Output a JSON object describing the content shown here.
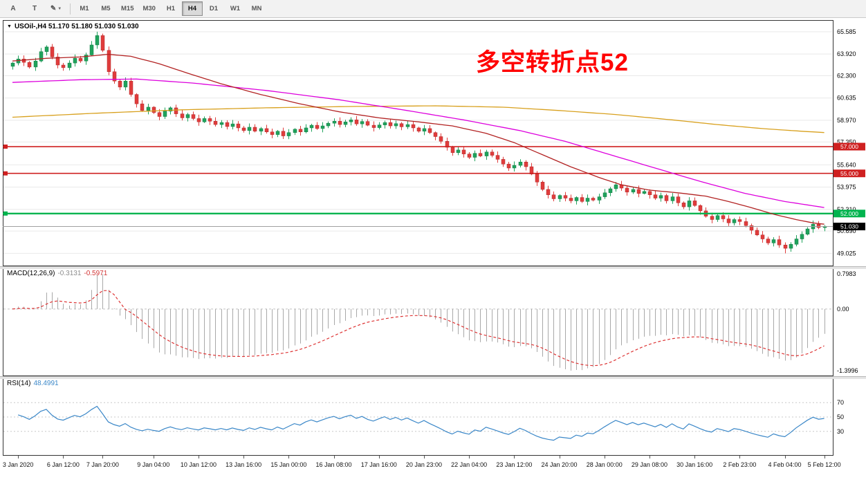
{
  "toolbar": {
    "tool_buttons": [
      {
        "name": "annotate",
        "label": "A",
        "has_dropdown": false
      },
      {
        "name": "text",
        "label": "T",
        "has_dropdown": false
      },
      {
        "name": "draw",
        "label": "✎",
        "has_dropdown": true
      }
    ],
    "timeframes": [
      "M1",
      "M5",
      "M15",
      "M30",
      "H1",
      "H4",
      "D1",
      "W1",
      "MN"
    ],
    "active_timeframe": "H4"
  },
  "chart": {
    "header": {
      "collapse_icon": "▼",
      "symbol_line": "USOil-,H4 51.170 51.180 51.030 51.030"
    },
    "annotation": {
      "text": "多空转折点52",
      "color": "#ff0000"
    },
    "price_axis_labels": [
      65.585,
      63.92,
      62.3,
      60.635,
      58.97,
      57.35,
      55.64,
      53.975,
      52.31,
      50.69,
      49.025
    ],
    "hlines": [
      {
        "price": 57.0,
        "label": "57.000",
        "color": "#cf2020",
        "width": 1.6
      },
      {
        "price": 55.0,
        "label": "55.000",
        "color": "#cf2020",
        "width": 1.6
      },
      {
        "price": 52.0,
        "label": "52.000",
        "color": "#00b44e",
        "width": 2.4
      }
    ],
    "current_price": {
      "value": 51.03,
      "label": "51.030"
    }
  },
  "macd": {
    "label": "MACD(12,26,9)",
    "value_main": "-0.3131",
    "value_signal": "-0.5971",
    "axis_labels": [
      "0.7983",
      "0.00",
      "-1.3996"
    ]
  },
  "rsi": {
    "label": "RSI(14)",
    "value": "48.4991",
    "levels": [
      70,
      50,
      30
    ]
  },
  "time_axis": {
    "labels": [
      {
        "text": "3 Jan 2020",
        "i": 1
      },
      {
        "text": "6 Jan 12:00",
        "i": 9
      },
      {
        "text": "7 Jan 20:00",
        "i": 16
      },
      {
        "text": "9 Jan 04:00",
        "i": 25
      },
      {
        "text": "10 Jan 12:00",
        "i": 33
      },
      {
        "text": "13 Jan 16:00",
        "i": 41
      },
      {
        "text": "15 Jan 00:00",
        "i": 49
      },
      {
        "text": "16 Jan 08:00",
        "i": 57
      },
      {
        "text": "17 Jan 16:00",
        "i": 65
      },
      {
        "text": "20 Jan 23:00",
        "i": 73
      },
      {
        "text": "22 Jan 04:00",
        "i": 81
      },
      {
        "text": "23 Jan 12:00",
        "i": 89
      },
      {
        "text": "24 Jan 20:00",
        "i": 97
      },
      {
        "text": "28 Jan 00:00",
        "i": 105
      },
      {
        "text": "29 Jan 08:00",
        "i": 113
      },
      {
        "text": "30 Jan 16:00",
        "i": 121
      },
      {
        "text": "2 Feb 23:00",
        "i": 129
      },
      {
        "text": "4 Feb 04:00",
        "i": 137
      },
      {
        "text": "5 Feb 12:00",
        "i": 144
      }
    ]
  },
  "chart_data": {
    "type": "candlestick",
    "symbol": "USOil-",
    "timeframe": "H4",
    "title": "USOil-,H4 51.170 51.180 51.030 51.030",
    "y_axis": {
      "min": 48.06,
      "max": 66.46,
      "ticks": [
        65.585,
        63.92,
        62.3,
        60.635,
        58.97,
        57.35,
        55.64,
        53.975,
        52.31,
        50.69,
        49.025
      ]
    },
    "open_first": 63.0,
    "closes": [
      63.25,
      63.55,
      63.3,
      62.95,
      63.4,
      64.1,
      64.45,
      63.7,
      63.1,
      62.9,
      63.25,
      63.6,
      63.4,
      63.85,
      64.6,
      65.3,
      64.2,
      62.6,
      61.9,
      61.45,
      61.9,
      60.9,
      60.2,
      59.7,
      59.95,
      59.55,
      59.25,
      59.65,
      59.9,
      59.45,
      59.15,
      59.4,
      59.1,
      58.85,
      59.1,
      58.9,
      58.65,
      58.8,
      58.5,
      58.7,
      58.4,
      58.2,
      58.45,
      58.15,
      58.35,
      58.1,
      57.9,
      58.15,
      57.8,
      58.05,
      58.3,
      58.1,
      58.4,
      58.6,
      58.35,
      58.55,
      58.75,
      58.9,
      58.65,
      58.85,
      59.0,
      58.7,
      58.88,
      58.6,
      58.42,
      58.62,
      58.8,
      58.55,
      58.72,
      58.48,
      58.65,
      58.4,
      58.15,
      58.35,
      58.05,
      57.75,
      57.4,
      56.95,
      56.55,
      56.75,
      56.45,
      56.2,
      56.5,
      56.3,
      56.6,
      56.35,
      56.05,
      55.7,
      55.4,
      55.6,
      55.85,
      55.5,
      54.95,
      54.35,
      53.8,
      53.4,
      53.1,
      53.35,
      53.15,
      52.95,
      53.2,
      52.9,
      53.15,
      53.0,
      53.25,
      53.55,
      53.85,
      54.15,
      53.9,
      53.6,
      53.8,
      53.5,
      53.65,
      53.4,
      53.15,
      53.35,
      52.95,
      53.25,
      52.8,
      52.5,
      52.95,
      52.6,
      52.2,
      51.8,
      51.55,
      51.85,
      51.6,
      51.3,
      51.55,
      51.4,
      51.1,
      50.75,
      50.4,
      50.1,
      49.8,
      50.05,
      49.65,
      49.4,
      49.7,
      50.1,
      50.45,
      50.85,
      51.2,
      50.95,
      51.03
    ],
    "extremes": {
      "high_index": 15,
      "high": 65.585,
      "low_index": 137,
      "low": 49.025
    },
    "moving_averages": [
      {
        "name": "ma-slow-orange",
        "color": "#d8a01d",
        "anchors": [
          [
            0,
            59.2
          ],
          [
            15,
            59.5
          ],
          [
            30,
            59.75
          ],
          [
            45,
            59.9
          ],
          [
            60,
            60.0
          ],
          [
            75,
            60.05
          ],
          [
            87,
            59.95
          ],
          [
            97,
            59.7
          ],
          [
            107,
            59.4
          ],
          [
            117,
            59.0
          ],
          [
            125,
            58.65
          ],
          [
            133,
            58.35
          ],
          [
            140,
            58.15
          ],
          [
            144,
            58.05
          ]
        ]
      },
      {
        "name": "ma-mid-magenta",
        "color": "#dd00dd",
        "anchors": [
          [
            0,
            61.8
          ],
          [
            12,
            62.0
          ],
          [
            22,
            62.05
          ],
          [
            32,
            61.75
          ],
          [
            45,
            61.2
          ],
          [
            58,
            60.5
          ],
          [
            70,
            59.7
          ],
          [
            80,
            59.0
          ],
          [
            90,
            58.2
          ],
          [
            98,
            57.4
          ],
          [
            106,
            56.4
          ],
          [
            114,
            55.4
          ],
          [
            122,
            54.4
          ],
          [
            130,
            53.5
          ],
          [
            137,
            52.9
          ],
          [
            144,
            52.45
          ]
        ]
      },
      {
        "name": "ma-fast-red",
        "color": "#b22222",
        "anchors": [
          [
            0,
            63.4
          ],
          [
            6,
            63.6
          ],
          [
            12,
            63.7
          ],
          [
            17,
            63.9
          ],
          [
            21,
            63.75
          ],
          [
            26,
            63.2
          ],
          [
            31,
            62.5
          ],
          [
            37,
            61.7
          ],
          [
            44,
            60.9
          ],
          [
            51,
            60.2
          ],
          [
            58,
            59.6
          ],
          [
            65,
            59.15
          ],
          [
            72,
            58.85
          ],
          [
            78,
            58.55
          ],
          [
            84,
            58.0
          ],
          [
            89,
            57.3
          ],
          [
            94,
            56.4
          ],
          [
            99,
            55.5
          ],
          [
            104,
            54.7
          ],
          [
            108,
            54.15
          ],
          [
            113,
            53.75
          ],
          [
            118,
            53.55
          ],
          [
            123,
            53.3
          ],
          [
            127,
            52.9
          ],
          [
            131,
            52.45
          ],
          [
            135,
            51.95
          ],
          [
            139,
            51.55
          ],
          [
            142,
            51.3
          ],
          [
            144,
            51.2
          ]
        ]
      }
    ],
    "indicators": {
      "macd": {
        "fast": 12,
        "slow": 26,
        "signal": 9,
        "shown_main": -0.3131,
        "shown_signal": -0.5971,
        "scale": [
          0.7983,
          -1.3996
        ]
      },
      "rsi": {
        "period": 14,
        "shown_value": 48.4991,
        "levels": [
          70,
          50,
          30
        ]
      }
    },
    "colors": {
      "up": "#1fa35c",
      "up_dark": "#157a44",
      "down": "#e03c3c",
      "down_dark": "#b02c2c",
      "grid": "#e9e9e9",
      "frame": "#333333",
      "macd_hist": "#a8a8a8",
      "macd_signal": "#dd3333",
      "rsi_line": "#3a87c8",
      "current_price_line": "#a0a0a0",
      "axis_text": "#000000"
    }
  }
}
